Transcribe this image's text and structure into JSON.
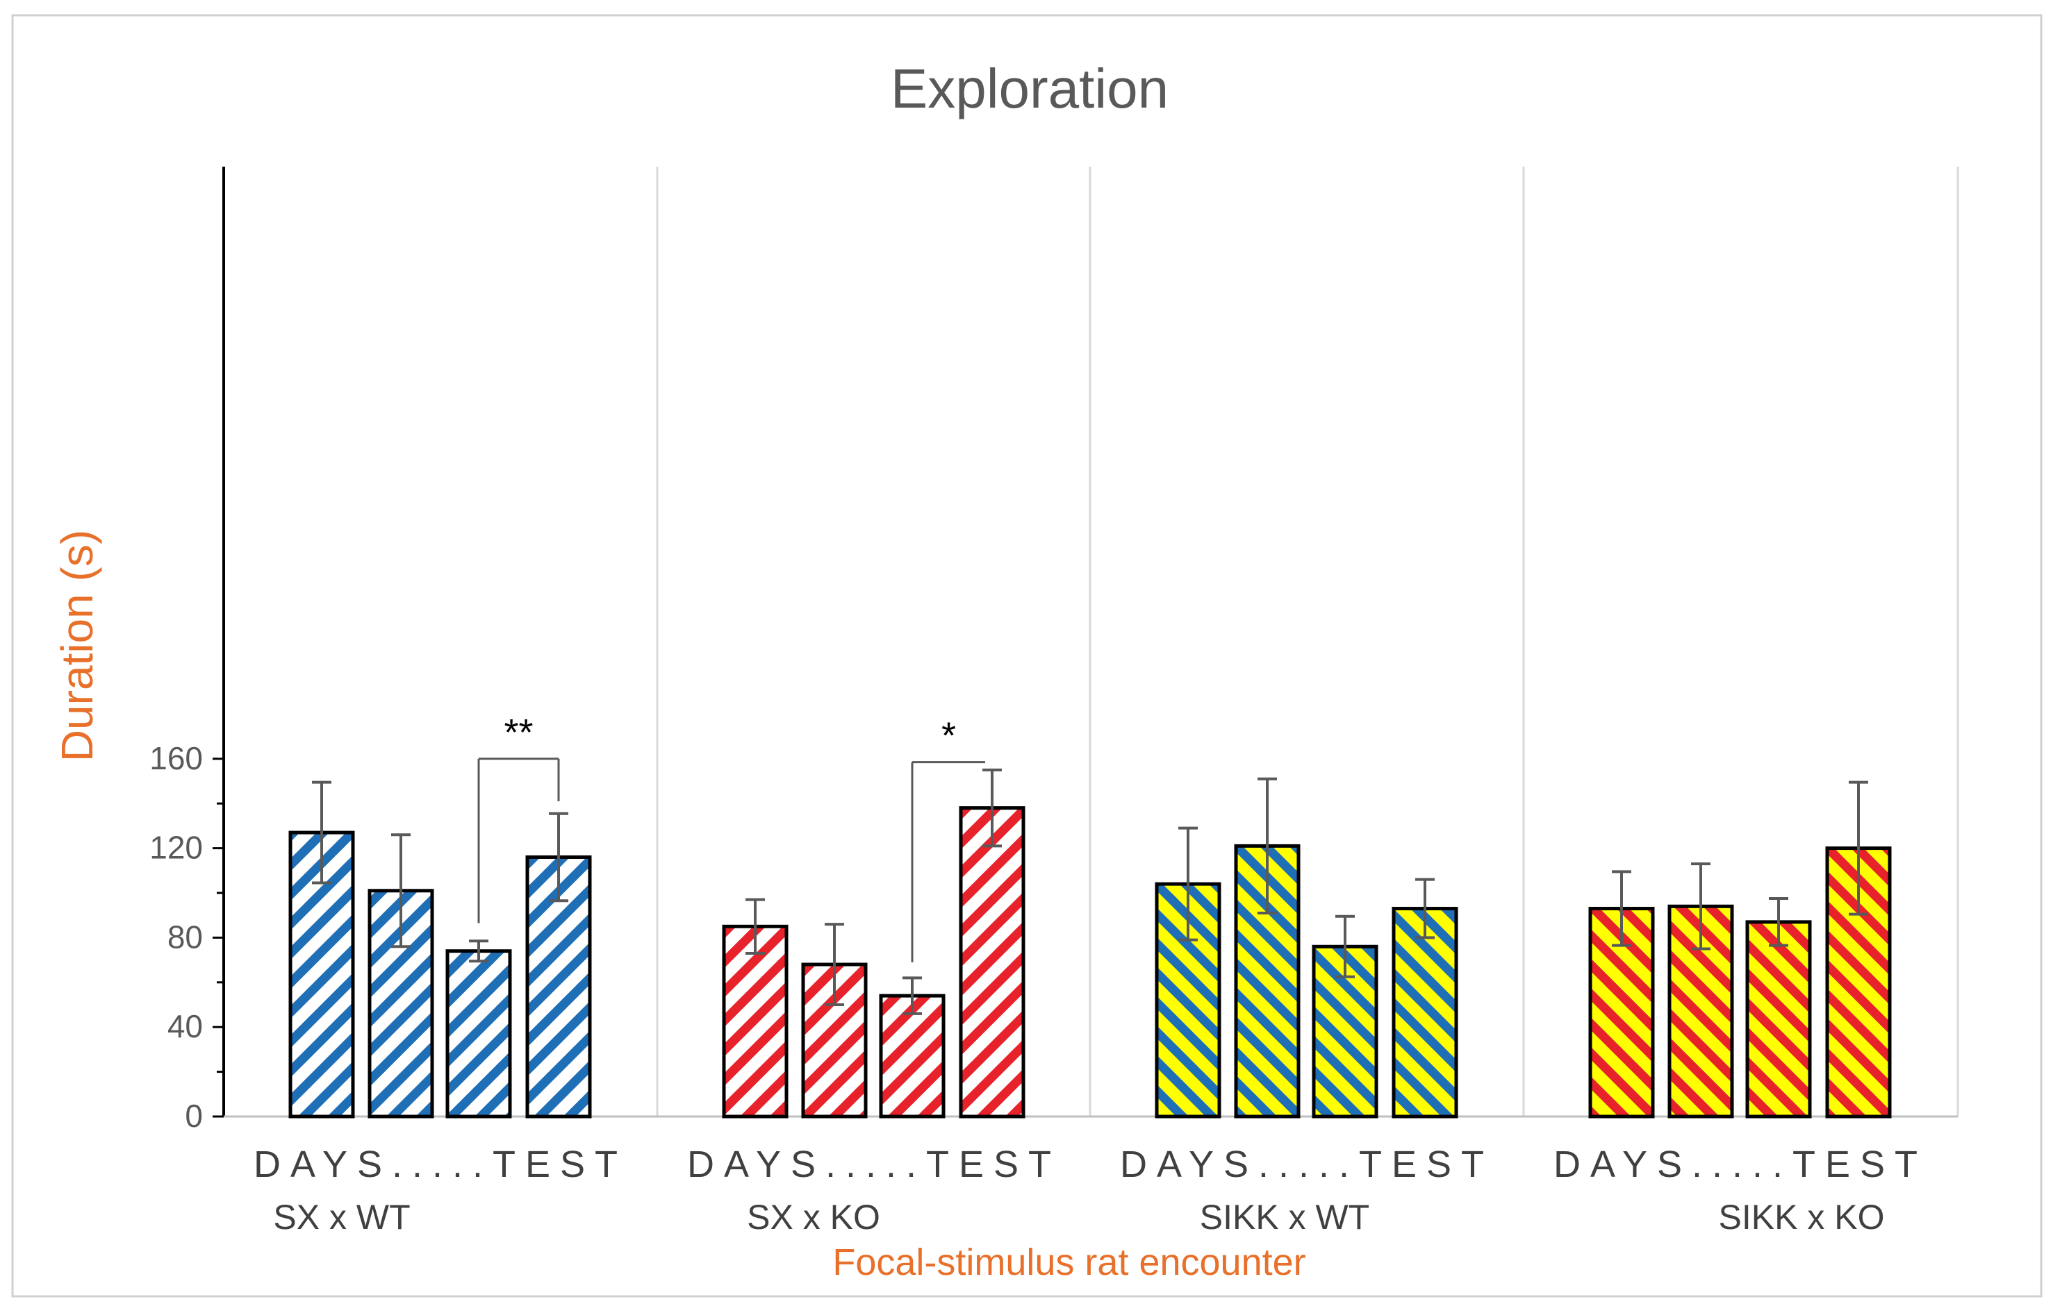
{
  "chart_data": {
    "type": "bar",
    "title": "Exploration",
    "ylabel": "Duration (s)",
    "xlabel": "Focal-stimulus rat encounter",
    "ylim": [
      0,
      170
    ],
    "yticks": [
      0,
      40,
      80,
      120,
      160
    ],
    "grid": false,
    "legend": "none",
    "groups": [
      {
        "name": "SX x WT",
        "sublabel": "DAYS.....TEST",
        "pattern": {
          "stripe": "#1f6fb6",
          "background": "#ffffff"
        },
        "values": [
          127,
          101,
          74,
          116
        ],
        "errors": [
          22.5,
          25,
          4.5,
          19.5
        ]
      },
      {
        "name": "SX x KO",
        "sublabel": "DAYS.....TEST",
        "pattern": {
          "stripe": "#e8222a",
          "background": "#ffffff"
        },
        "values": [
          85,
          68,
          54,
          138
        ],
        "errors": [
          12,
          18,
          8,
          17
        ]
      },
      {
        "name": "SIKK x WT",
        "sublabel": "DAYS.....TEST",
        "pattern": {
          "stripe": "#1f6fb6",
          "background": "#ffff00"
        },
        "values": [
          104,
          121,
          76,
          93
        ],
        "errors": [
          25,
          30,
          13.5,
          13
        ]
      },
      {
        "name": "SIKK x KO",
        "sublabel": "DAYS.....TEST",
        "pattern": {
          "stripe": "#e8222a",
          "background": "#ffff00"
        },
        "values": [
          93,
          94,
          87,
          120
        ],
        "errors": [
          16.5,
          19,
          10.5,
          29.5
        ]
      }
    ],
    "annotations": [
      {
        "label": "**",
        "group": 0,
        "from_bar": 2,
        "to_bar": 3
      },
      {
        "label": "*",
        "group": 1,
        "from_bar": 2,
        "to_bar": 3
      }
    ]
  }
}
